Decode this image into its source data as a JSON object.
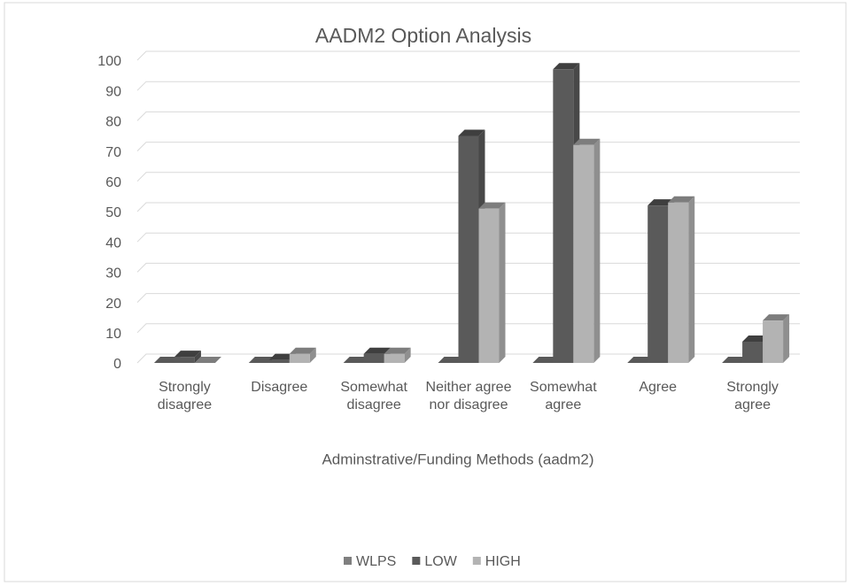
{
  "chart_data": {
    "type": "bar3d",
    "title": "AADM2 Option Analysis",
    "x_label": "Adminstrative/Funding Methods (aadm2)",
    "categories": [
      "Strongly disagree",
      "Disagree",
      "Somewhat disagree",
      "Neither agree nor disagree",
      "Somewhat agree",
      "Agree",
      "Strongly agree"
    ],
    "series": [
      {
        "name": "WLPS",
        "color": "#7f7f7f",
        "values": [
          0,
          0,
          0,
          0,
          0,
          0,
          0
        ]
      },
      {
        "name": "LOW",
        "color": "#5a5a5a",
        "values": [
          2,
          1,
          3,
          75,
          97,
          52,
          7
        ]
      },
      {
        "name": "HIGH",
        "color": "#b3b3b3",
        "values": [
          0,
          3,
          3,
          51,
          72,
          53,
          14
        ]
      }
    ],
    "ylim": [
      0,
      100
    ],
    "yticks": [
      0,
      10,
      20,
      30,
      40,
      50,
      60,
      70,
      80,
      90,
      100
    ],
    "grid": true,
    "legend": "bottom"
  }
}
